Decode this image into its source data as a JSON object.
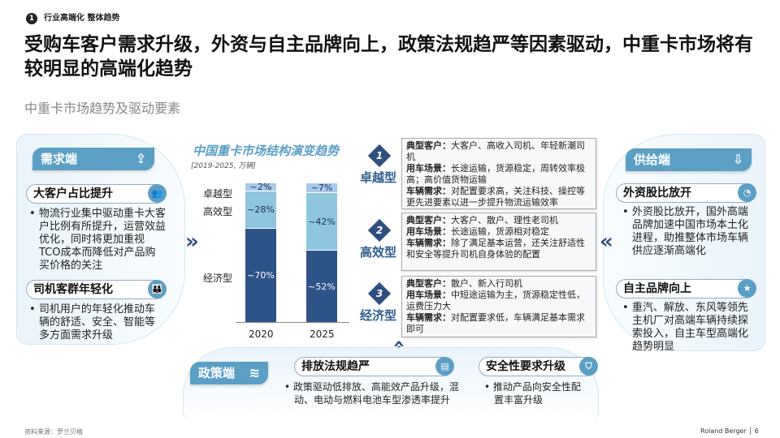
{
  "header": {
    "section_number": "1",
    "breadcrumb": "行业高端化  整体趋势",
    "title": "受购车客户需求升级，外资与自主品牌向上，政策法规趋严等因素驱动，中重卡市场将有较明显的高端化趋势",
    "subtitle": "中重卡市场趋势及驱动要素"
  },
  "demand": {
    "header": "需求端",
    "header_icon": "share-up-icon",
    "items": [
      {
        "title": "大客户占比提升",
        "icon": "group-icon",
        "bullet": "物流行业集中驱动重卡大客户比例有所提升，运营效益优化，同时将更加重视TCO成本而降低对产品购买价格的关注"
      },
      {
        "title": "司机客群年轻化",
        "icon": "people-icon",
        "bullet": "司机用户的年轻化推动车辆的舒适、安全、智能等多方面需求升级"
      }
    ]
  },
  "supply": {
    "header": "供给端",
    "header_icon": "download-box-icon",
    "items": [
      {
        "title": "外资股比放开",
        "icon": "pie-icon",
        "bullet": "外资股比放开，国外高端品牌加速中国市场本土化进程，助推整体市场车辆供应逐渐高端化"
      },
      {
        "title": "自主品牌向上",
        "icon": "star-icon",
        "bullet": "重汽、解放、东风等领先主机厂对高端车辆持续探索投入，自主车型高端化趋势明显"
      }
    ]
  },
  "policy": {
    "header": "政策端",
    "header_icon": "layers-icon",
    "items": [
      {
        "title": "排放法规趋严",
        "icon": "document-icon",
        "bullet": "政策驱动低排放、高能效产品升级，混动、电动与燃料电池车型渗透率提升"
      },
      {
        "title": "安全性要求升级",
        "icon": "shield-icon",
        "bullet": "推动产品向安全性配置丰富升级"
      }
    ]
  },
  "chart_data": {
    "type": "bar",
    "stacked": true,
    "title": "中国重卡市场结构演变趋势",
    "subtitle": "[2019-2025, 万辆]",
    "categories": [
      "2020",
      "2025"
    ],
    "series": [
      {
        "name": "经济型",
        "values": [
          70,
          52
        ],
        "labels": [
          "~70%",
          "~52%"
        ],
        "color": "#2e5388"
      },
      {
        "name": "高效型",
        "values": [
          28,
          42
        ],
        "labels": [
          "~28%",
          "~42%"
        ],
        "color": "#8fc6de"
      },
      {
        "name": "卓越型",
        "values": [
          2,
          7
        ],
        "labels": [
          "~2%",
          "~7%"
        ],
        "color": "#a9c8ea"
      }
    ]
  },
  "tiers": [
    {
      "num": "1",
      "name": "卓越型",
      "lines": [
        {
          "k": "典型客户：",
          "v": "大客户、高收入司机、年轻新潮司机"
        },
        {
          "k": "用车场景：",
          "v": "长途运输，货源稳定，周转效率极高；高价值货物运输"
        },
        {
          "k": "车辆需求：",
          "v": "对配置要求高，关注科技、操控等更先进要素以进一步提升物流运输效率"
        }
      ]
    },
    {
      "num": "2",
      "name": "高效型",
      "lines": [
        {
          "k": "典型客户：",
          "v": "大客户、散户、理性老司机"
        },
        {
          "k": "用车场景：",
          "v": "长途运输，货源相对稳定"
        },
        {
          "k": "车辆需求：",
          "v": "除了满足基本运营，还关注舒适性和安全等提升司机自身体验的配置"
        }
      ]
    },
    {
      "num": "3",
      "name": "经济型",
      "lines": [
        {
          "k": "典型客户：",
          "v": "散户、新入行司机"
        },
        {
          "k": "用车场景：",
          "v": "中短途运输为主，货源稳定性低，运费压力大"
        },
        {
          "k": "车辆需求：",
          "v": "对配置要求低，车辆满足基本需求即可"
        }
      ]
    }
  ],
  "footer": {
    "source": "资料来源：罗兰贝格",
    "brand": "Roland Berger",
    "page": "6"
  }
}
